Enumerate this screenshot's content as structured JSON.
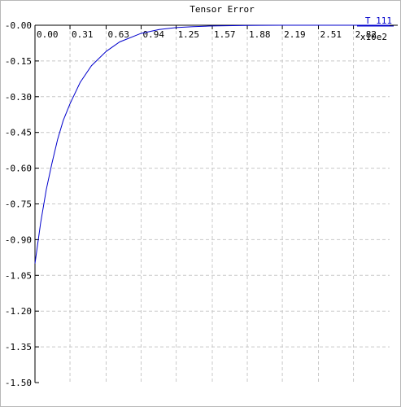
{
  "chart_data": {
    "type": "line",
    "title": "Tensor Error",
    "x_multiplier_label": "x10e2",
    "xlim": [
      0,
      3.14
    ],
    "ylim": [
      -1.5,
      0.0
    ],
    "x_ticks": [
      "0.00",
      "0.31",
      "0.63",
      "0.94",
      "1.25",
      "1.57",
      "1.88",
      "2.19",
      "2.51",
      "2.82"
    ],
    "y_ticks": [
      "-0.00",
      "-0.15",
      "-0.30",
      "-0.45",
      "-0.60",
      "-0.75",
      "-0.90",
      "-1.05",
      "-1.20",
      "-1.35",
      "-1.50"
    ],
    "grid": true,
    "legend_position": "top-right",
    "series": [
      {
        "name": "T 111",
        "color": "#0000cc",
        "x": [
          0.0,
          0.05,
          0.1,
          0.15,
          0.2,
          0.25,
          0.31,
          0.4,
          0.5,
          0.63,
          0.75,
          0.94,
          1.1,
          1.25,
          1.4,
          1.57,
          1.75,
          1.88,
          2.0,
          2.19,
          2.35,
          2.51,
          2.65,
          2.82,
          3.0,
          3.14
        ],
        "y": [
          -1.0,
          -0.83,
          -0.69,
          -0.58,
          -0.48,
          -0.4,
          -0.33,
          -0.24,
          -0.17,
          -0.11,
          -0.07,
          -0.034,
          -0.018,
          -0.01,
          -0.006,
          -0.003,
          -0.0015,
          -0.0009,
          -0.0005,
          -0.0002,
          -0.0001,
          -5e-05,
          -2e-05,
          -1e-05,
          0.0,
          0.0
        ]
      }
    ]
  }
}
